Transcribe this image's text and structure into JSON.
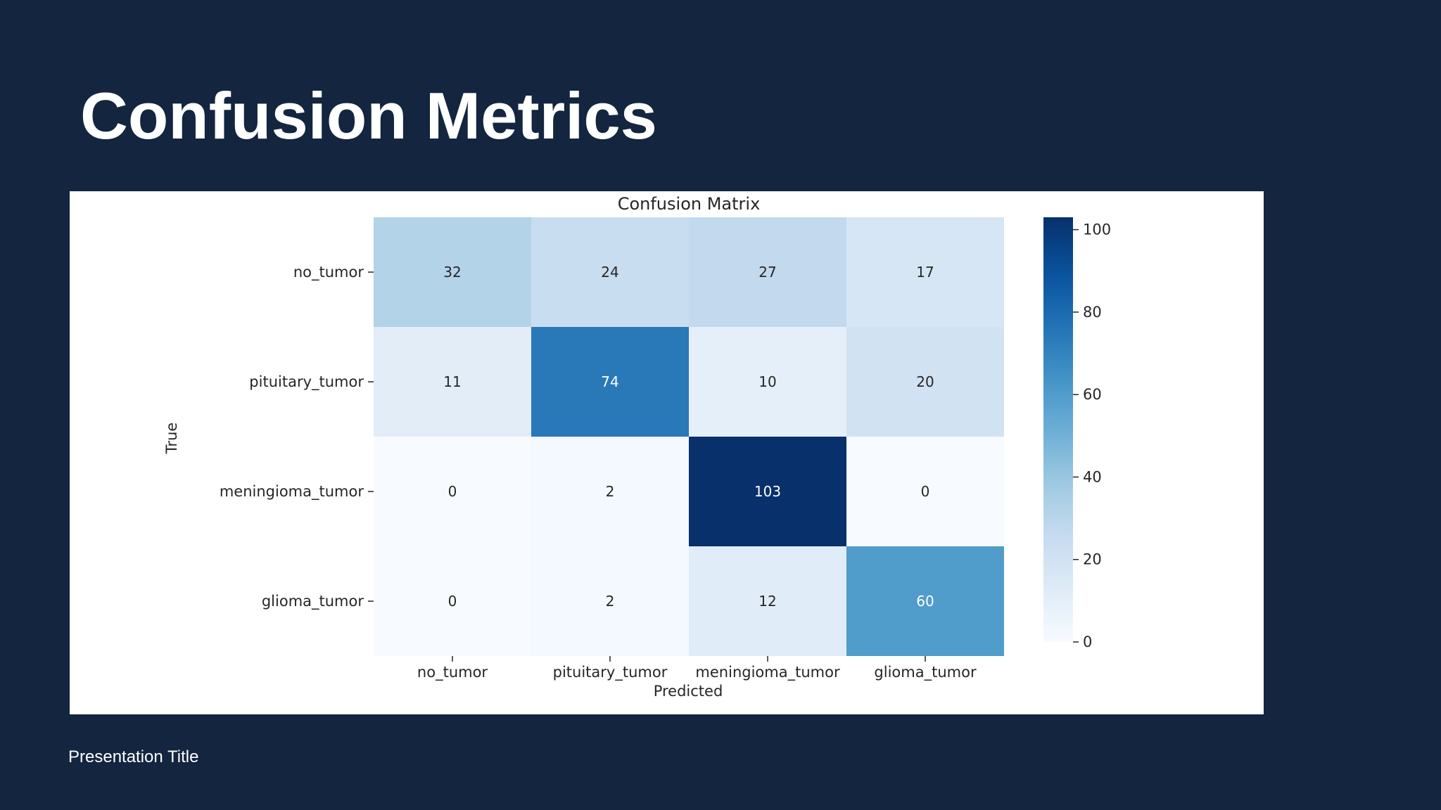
{
  "slide": {
    "title": "Confusion Metrics",
    "footer": "Presentation Title"
  },
  "colors": {
    "background": "#13253f",
    "panel": "#ffffff",
    "cmap_low": "#f7fbff",
    "cmap_high": "#08306b"
  },
  "chart_data": {
    "type": "heatmap",
    "title": "Confusion Matrix",
    "xlabel": "Predicted",
    "ylabel": "True",
    "x_categories": [
      "no_tumor",
      "pituitary_tumor",
      "meningioma_tumor",
      "glioma_tumor"
    ],
    "y_categories": [
      "no_tumor",
      "pituitary_tumor",
      "meningioma_tumor",
      "glioma_tumor"
    ],
    "values": [
      [
        32,
        24,
        27,
        17
      ],
      [
        11,
        74,
        10,
        20
      ],
      [
        0,
        2,
        103,
        0
      ],
      [
        0,
        2,
        12,
        60
      ]
    ],
    "colormap": "Blues",
    "colorbar": {
      "range": [
        0,
        103
      ],
      "ticks": [
        0,
        20,
        40,
        60,
        80,
        100
      ]
    }
  }
}
